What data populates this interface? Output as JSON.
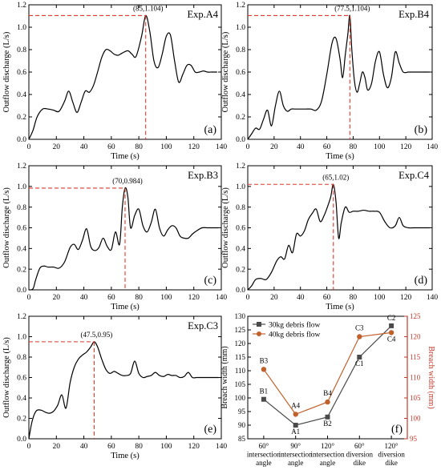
{
  "chart_data": [
    {
      "type": "line",
      "panel_label": "(a)",
      "experiment": "Exp.A4",
      "xlabel": "Time (s)",
      "ylabel": "Outflow discharge (L/s)",
      "xlim": [
        0,
        140
      ],
      "ylim": [
        0,
        1.2
      ],
      "xticks": [
        "0",
        "20",
        "40",
        "60",
        "80",
        "100",
        "120",
        "140"
      ],
      "yticks": [
        "0.0",
        "0.2",
        "0.4",
        "0.6",
        "0.8",
        "1.0",
        "1.2"
      ],
      "grid": false,
      "peak": {
        "x": 85,
        "y": 1.104,
        "label": "(85,1.104)"
      },
      "series": [
        {
          "x": [
            0,
            3,
            6,
            10,
            14,
            18,
            22,
            26,
            29,
            32,
            35,
            38,
            41,
            44,
            47,
            50,
            53,
            56,
            59,
            62,
            65,
            68,
            72,
            75,
            78,
            82,
            85,
            88,
            91,
            94,
            97,
            100,
            103,
            106,
            109,
            112,
            115,
            118,
            121,
            124,
            127,
            130,
            133,
            137
          ],
          "y": [
            0,
            0.08,
            0.2,
            0.27,
            0.27,
            0.26,
            0.25,
            0.34,
            0.43,
            0.33,
            0.24,
            0.33,
            0.43,
            0.42,
            0.48,
            0.6,
            0.73,
            0.8,
            0.79,
            0.76,
            0.75,
            0.77,
            0.79,
            0.76,
            0.74,
            0.92,
            1.104,
            0.96,
            0.7,
            0.64,
            0.76,
            0.92,
            0.93,
            0.7,
            0.51,
            0.58,
            0.66,
            0.66,
            0.6,
            0.6,
            0.61,
            0.6,
            0.6,
            0.6
          ]
        }
      ]
    },
    {
      "type": "line",
      "panel_label": "(b)",
      "experiment": "Exp.B4",
      "xlabel": "Time (s)",
      "ylabel": "Outflow discharge (L/s)",
      "xlim": [
        0,
        140
      ],
      "ylim": [
        0,
        1.2
      ],
      "xticks": [
        "0",
        "20",
        "40",
        "60",
        "80",
        "100",
        "120",
        "140"
      ],
      "yticks": [
        "0.0",
        "0.2",
        "0.4",
        "0.6",
        "0.8",
        "1.0",
        "1.2"
      ],
      "grid": false,
      "peak": {
        "x": 77.5,
        "y": 1.104,
        "label": "(77.5,1.104)"
      },
      "series": [
        {
          "x": [
            0,
            3,
            6,
            9,
            12,
            15,
            18,
            21,
            24,
            27,
            30,
            33,
            36,
            40,
            44,
            48,
            52,
            56,
            60,
            64,
            67,
            70,
            72,
            74,
            76,
            77.5,
            79,
            81,
            83,
            85,
            87,
            89,
            91,
            94,
            97,
            100,
            103,
            106,
            109,
            112,
            115,
            118,
            122,
            126,
            130,
            134,
            138
          ],
          "y": [
            0,
            0.05,
            0.1,
            0.09,
            0.18,
            0.26,
            0.12,
            0.3,
            0.43,
            0.3,
            0.25,
            0.27,
            0.27,
            0.27,
            0.27,
            0.27,
            0.26,
            0.34,
            0.58,
            0.86,
            0.9,
            0.72,
            0.55,
            0.75,
            0.94,
            1.104,
            0.8,
            0.52,
            0.42,
            0.5,
            0.6,
            0.55,
            0.44,
            0.5,
            0.7,
            0.78,
            0.58,
            0.46,
            0.55,
            0.78,
            0.68,
            0.6,
            0.6,
            0.6,
            0.6,
            0.6,
            0.6
          ]
        }
      ]
    },
    {
      "type": "line",
      "panel_label": "(c)",
      "experiment": "Exp.B3",
      "xlabel": "Time (s)",
      "ylabel": "Outflow discharge (L/s)",
      "xlim": [
        0,
        140
      ],
      "ylim": [
        0,
        1.2
      ],
      "xticks": [
        "0",
        "20",
        "40",
        "60",
        "80",
        "100",
        "120",
        "140"
      ],
      "yticks": [
        "0.0",
        "0.2",
        "0.4",
        "0.6",
        "0.8",
        "1.0",
        "1.2"
      ],
      "grid": false,
      "peak": {
        "x": 70,
        "y": 0.984,
        "label": "(70,0.984)"
      },
      "series": [
        {
          "x": [
            0,
            3,
            5,
            8,
            11,
            14,
            18,
            22,
            26,
            30,
            33,
            36,
            39,
            42,
            45,
            48,
            51,
            54,
            57,
            60,
            63,
            66,
            68,
            70,
            72,
            74,
            77,
            80,
            83,
            86,
            89,
            92,
            95,
            98,
            101,
            104,
            107,
            110,
            113,
            116,
            119,
            122,
            126,
            130,
            134,
            138
          ],
          "y": [
            0,
            0.01,
            0.1,
            0.21,
            0.23,
            0.22,
            0.22,
            0.21,
            0.27,
            0.41,
            0.44,
            0.39,
            0.48,
            0.59,
            0.42,
            0.38,
            0.41,
            0.5,
            0.42,
            0.39,
            0.56,
            0.44,
            0.8,
            0.984,
            0.9,
            0.6,
            0.72,
            0.78,
            0.62,
            0.56,
            0.65,
            0.78,
            0.6,
            0.52,
            0.58,
            0.62,
            0.6,
            0.52,
            0.5,
            0.5,
            0.54,
            0.57,
            0.6,
            0.6,
            0.6,
            0.6
          ]
        }
      ]
    },
    {
      "type": "line",
      "panel_label": "(d)",
      "experiment": "Exp.C4",
      "xlabel": "Time (s)",
      "ylabel": "Outflow discharge (L/s)",
      "xlim": [
        0,
        140
      ],
      "ylim": [
        0,
        1.2
      ],
      "xticks": [
        "0",
        "20",
        "40",
        "60",
        "80",
        "100",
        "120",
        "140"
      ],
      "yticks": [
        "0.0",
        "0.2",
        "0.4",
        "0.6",
        "0.8",
        "1.0",
        "1.2"
      ],
      "grid": false,
      "peak": {
        "x": 65,
        "y": 1.02,
        "label": "(65,1.02)"
      },
      "series": [
        {
          "x": [
            0,
            3,
            6,
            10,
            14,
            18,
            22,
            25,
            28,
            31,
            34,
            37,
            40,
            43,
            46,
            49,
            52,
            55,
            58,
            61,
            63,
            65,
            67,
            69,
            71,
            74,
            77,
            80,
            84,
            88,
            92,
            96,
            100,
            104,
            108,
            112,
            115,
            118,
            122,
            126,
            130,
            134,
            138
          ],
          "y": [
            0,
            0.04,
            0.1,
            0.11,
            0.1,
            0.17,
            0.28,
            0.32,
            0.3,
            0.43,
            0.36,
            0.54,
            0.52,
            0.57,
            0.68,
            0.74,
            0.78,
            0.66,
            0.72,
            0.82,
            0.9,
            1.02,
            0.85,
            0.5,
            0.65,
            0.8,
            0.75,
            0.76,
            0.76,
            0.77,
            0.76,
            0.76,
            0.75,
            0.66,
            0.6,
            0.62,
            0.7,
            0.62,
            0.6,
            0.6,
            0.6,
            0.6,
            0.6
          ]
        }
      ]
    },
    {
      "type": "line",
      "panel_label": "(e)",
      "experiment": "Exp.C3",
      "xlabel": "Time (s)",
      "ylabel": "Outflow discharge (L/s)",
      "xlim": [
        0,
        140
      ],
      "ylim": [
        0,
        1.2
      ],
      "xticks": [
        "0",
        "20",
        "40",
        "60",
        "80",
        "100",
        "120",
        "140"
      ],
      "yticks": [
        "0.0",
        "0.2",
        "0.4",
        "0.6",
        "0.8",
        "1.0",
        "1.2"
      ],
      "grid": false,
      "peak": {
        "x": 47.5,
        "y": 0.95,
        "label": "(47.5,0.95)"
      },
      "series": [
        {
          "x": [
            0,
            2,
            4,
            6,
            9,
            12,
            15,
            18,
            21,
            24,
            27,
            30,
            33,
            36,
            39,
            42,
            45,
            47.5,
            50,
            53,
            56,
            59,
            62,
            65,
            68,
            71,
            74,
            77,
            80,
            83,
            86,
            89,
            92,
            95,
            98,
            101,
            104,
            107,
            110,
            113,
            116,
            119,
            122,
            126,
            130,
            134,
            138
          ],
          "y": [
            0,
            0.15,
            0.24,
            0.28,
            0.28,
            0.26,
            0.25,
            0.27,
            0.33,
            0.43,
            0.3,
            0.55,
            0.7,
            0.78,
            0.82,
            0.85,
            0.9,
            0.95,
            0.9,
            0.78,
            0.68,
            0.64,
            0.66,
            0.64,
            0.62,
            0.62,
            0.64,
            0.76,
            0.64,
            0.6,
            0.61,
            0.62,
            0.65,
            0.62,
            0.61,
            0.63,
            0.62,
            0.62,
            0.6,
            0.61,
            0.65,
            0.6,
            0.6,
            0.6,
            0.6,
            0.6,
            0.6
          ]
        }
      ]
    },
    {
      "type": "line",
      "panel_label": "(f)",
      "ylabel": "Breach width (mm)",
      "ylabel_right": "Breach width (mm)",
      "categories": [
        "60°\nintersection\nangle",
        "90°\nintersection\nangle",
        "120°\nintersection\nangle",
        "60°\ndiversion\ndike",
        "120°\ndiversion\ndike"
      ],
      "ylim": [
        85,
        130
      ],
      "yticks": [
        "85",
        "90",
        "95",
        "100",
        "105",
        "110",
        "115",
        "120",
        "125",
        "130"
      ],
      "ylim_right": [
        95,
        125
      ],
      "yticks_right": [
        "95",
        "100",
        "105",
        "110",
        "115",
        "120",
        "125"
      ],
      "right_axis_color": "#c0392b",
      "legend_position": "top-left",
      "series": [
        {
          "name": "30kg debris flow",
          "axis": "left",
          "color": "#4a4a4a",
          "marker": "square",
          "values": [
            99.5,
            90,
            93,
            115,
            126.5
          ],
          "point_labels": [
            "B1",
            "A1",
            "B2",
            "C1",
            "C2"
          ]
        },
        {
          "name": "40kg debris flow",
          "axis": "right",
          "color": "#c0602b",
          "marker": "circle",
          "values": [
            112,
            101,
            104,
            120,
            121
          ],
          "point_labels": [
            "B3",
            "A4",
            "B4",
            "C3",
            "C4"
          ]
        }
      ]
    }
  ]
}
